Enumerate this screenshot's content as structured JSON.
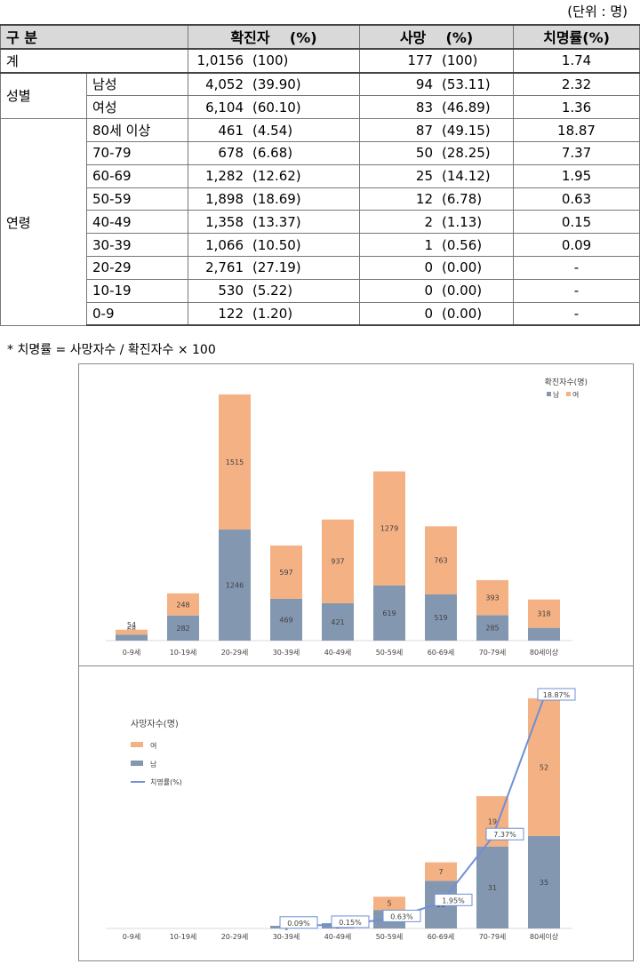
{
  "unit_label": "(단위 : 명)",
  "table": {
    "header": {
      "category": "구 분",
      "confirmed": "확진자",
      "confirmed_pct": "(%)",
      "deaths": "사망",
      "deaths_pct": "(%)",
      "fatality": "치명률(%)"
    },
    "total": {
      "label": "계",
      "confirmed": "1,0156",
      "confirmed_pct": "(100)",
      "deaths": "177",
      "deaths_pct": "(100)",
      "fatality": "1.74"
    },
    "gender_group": "성별",
    "gender_rows": [
      {
        "label": "남성",
        "confirmed": "4,052",
        "confirmed_pct": "(39.90)",
        "deaths": "94",
        "deaths_pct": "(53.11)",
        "fatality": "2.32"
      },
      {
        "label": "여성",
        "confirmed": "6,104",
        "confirmed_pct": "(60.10)",
        "deaths": "83",
        "deaths_pct": "(46.89)",
        "fatality": "1.36"
      }
    ],
    "age_group": "연령",
    "age_rows": [
      {
        "label": "80세 이상",
        "confirmed": "461",
        "confirmed_pct": "(4.54)",
        "deaths": "87",
        "deaths_pct": "(49.15)",
        "fatality": "18.87"
      },
      {
        "label": "70-79",
        "confirmed": "678",
        "confirmed_pct": "(6.68)",
        "deaths": "50",
        "deaths_pct": "(28.25)",
        "fatality": "7.37"
      },
      {
        "label": "60-69",
        "confirmed": "1,282",
        "confirmed_pct": "(12.62)",
        "deaths": "25",
        "deaths_pct": "(14.12)",
        "fatality": "1.95"
      },
      {
        "label": "50-59",
        "confirmed": "1,898",
        "confirmed_pct": "(18.69)",
        "deaths": "12",
        "deaths_pct": "(6.78)",
        "fatality": "0.63"
      },
      {
        "label": "40-49",
        "confirmed": "1,358",
        "confirmed_pct": "(13.37)",
        "deaths": "2",
        "deaths_pct": "(1.13)",
        "fatality": "0.15"
      },
      {
        "label": "30-39",
        "confirmed": "1,066",
        "confirmed_pct": "(10.50)",
        "deaths": "1",
        "deaths_pct": "(0.56)",
        "fatality": "0.09"
      },
      {
        "label": "20-29",
        "confirmed": "2,761",
        "confirmed_pct": "(27.19)",
        "deaths": "0",
        "deaths_pct": "(0.00)",
        "fatality": "-"
      },
      {
        "label": "10-19",
        "confirmed": "530",
        "confirmed_pct": "(5.22)",
        "deaths": "0",
        "deaths_pct": "(0.00)",
        "fatality": "-"
      },
      {
        "label": "0-9",
        "confirmed": "122",
        "confirmed_pct": "(1.20)",
        "deaths": "0",
        "deaths_pct": "(0.00)",
        "fatality": "-"
      }
    ]
  },
  "footnote": "*  치명률 = 사망자수 / 확진자수 × 100",
  "colors": {
    "male": "#8497b0",
    "female": "#f4b183",
    "line": "#6f8fd8"
  },
  "chart_data": [
    {
      "type": "bar",
      "stacked": true,
      "title": "확진자수(명)",
      "legend_position": "top-right",
      "categories": [
        "0-9세",
        "10-19세",
        "20-29세",
        "30-39세",
        "40-49세",
        "50-59세",
        "60-69세",
        "70-79세",
        "80세이상"
      ],
      "series": [
        {
          "name": "남",
          "values": [
            68,
            282,
            1246,
            469,
            421,
            619,
            519,
            285,
            143
          ]
        },
        {
          "name": "여",
          "values": [
            54,
            248,
            1515,
            597,
            937,
            1279,
            763,
            393,
            318
          ]
        }
      ],
      "ylim": [
        0,
        2900
      ]
    },
    {
      "type": "bar",
      "stacked": true,
      "title": "사망자수(명)",
      "legend_position": "top-left",
      "categories": [
        "0-9세",
        "10-19세",
        "20-29세",
        "30-39세",
        "40-49세",
        "50-59세",
        "60-69세",
        "70-79세",
        "80세이상"
      ],
      "series": [
        {
          "name": "남",
          "values": [
            0,
            0,
            0,
            1,
            2,
            7,
            18,
            31,
            35
          ]
        },
        {
          "name": "여",
          "values": [
            0,
            0,
            0,
            0,
            0,
            5,
            7,
            19,
            52
          ]
        }
      ],
      "line_series": {
        "name": "치명률(%)",
        "values": [
          null,
          null,
          null,
          0.09,
          0.15,
          0.63,
          1.95,
          7.37,
          18.87
        ],
        "labels": [
          "",
          "",
          "",
          "0.09%",
          "0.15%",
          "0.63%",
          "1.95%",
          "7.37%",
          "18.87%"
        ]
      },
      "ylim": [
        0,
        90
      ]
    }
  ]
}
